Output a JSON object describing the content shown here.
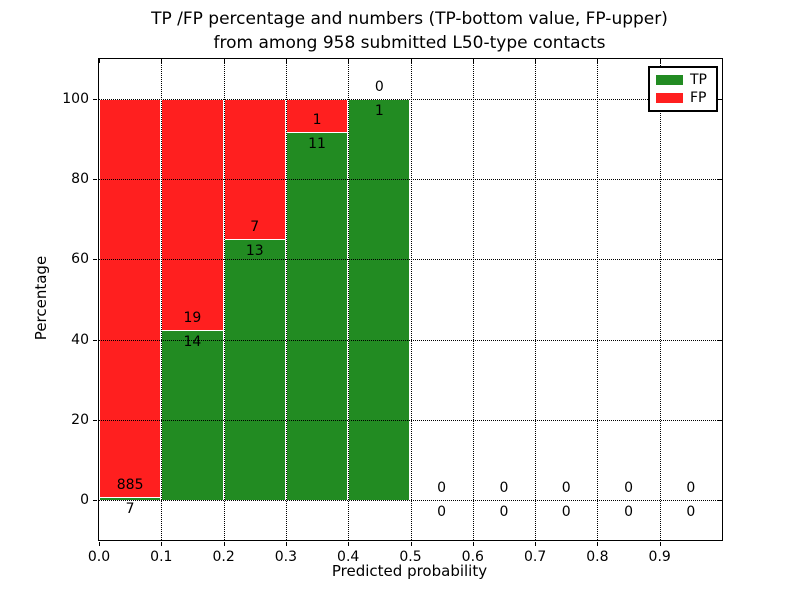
{
  "title": {
    "line1": "TP /FP percentage and numbers (TP-bottom value, FP-upper)",
    "line2": "from among 958 submitted L50-type contacts"
  },
  "axes": {
    "xlabel": "Predicted probability",
    "ylabel": "Percentage",
    "x_tick_labels": [
      "0.0",
      "0.1",
      "0.2",
      "0.3",
      "0.4",
      "0.5",
      "0.6",
      "0.7",
      "0.8",
      "0.9"
    ],
    "x_tick_values": [
      0.0,
      0.1,
      0.2,
      0.3,
      0.4,
      0.5,
      0.6,
      0.7,
      0.8,
      0.9
    ],
    "y_tick_labels": [
      "0",
      "20",
      "40",
      "60",
      "80",
      "100"
    ],
    "y_tick_values": [
      0,
      20,
      40,
      60,
      80,
      100
    ],
    "xlim": [
      0.0,
      1.0
    ],
    "ylim": [
      -10,
      110
    ],
    "grid_style": "dotted",
    "grid_color": "#000000"
  },
  "legend": {
    "position": "upper-right",
    "entries": [
      {
        "label": "TP",
        "color": "#228b22"
      },
      {
        "label": "FP",
        "color": "#ff1f1f"
      }
    ]
  },
  "chart_data": {
    "type": "bar",
    "stacked": true,
    "title": "TP /FP percentage and numbers (TP-bottom value, FP-upper) from among 958 submitted L50-type contacts",
    "xlabel": "Predicted probability",
    "ylabel": "Percentage",
    "total_submitted": 958,
    "bin_width": 0.1,
    "bin_starts": [
      0.0,
      0.1,
      0.2,
      0.3,
      0.4,
      0.5,
      0.6,
      0.7,
      0.8,
      0.9
    ],
    "series": [
      {
        "name": "TP",
        "color": "#228b22",
        "counts": [
          7,
          14,
          13,
          11,
          1,
          0,
          0,
          0,
          0,
          0
        ]
      },
      {
        "name": "FP",
        "color": "#ff1f1f",
        "counts": [
          885,
          19,
          7,
          1,
          0,
          0,
          0,
          0,
          0,
          0
        ]
      }
    ],
    "tp_percent": [
      0.78,
      42.42,
      65.0,
      91.67,
      100.0,
      0,
      0,
      0,
      0,
      0
    ],
    "fp_percent": [
      99.22,
      57.58,
      35.0,
      8.33,
      0.0,
      0,
      0,
      0,
      0,
      0
    ],
    "annotation_note": "TP count shown below segment boundary, FP count above"
  },
  "colors": {
    "tp": "#228b22",
    "fp": "#ff1f1f",
    "background": "#ffffff",
    "bar_edge": "#ffffff",
    "text": "#000000"
  }
}
